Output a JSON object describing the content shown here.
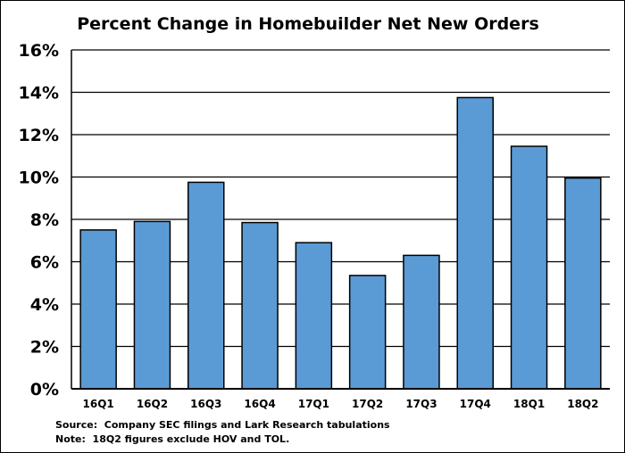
{
  "chart_data": {
    "type": "bar",
    "title": "Percent Change in Homebuilder Net New Orders",
    "xlabel": "",
    "ylabel": "",
    "categories": [
      "16Q1",
      "16Q2",
      "16Q3",
      "16Q4",
      "17Q1",
      "17Q2",
      "17Q3",
      "17Q4",
      "18Q1",
      "18Q2"
    ],
    "values": [
      7.5,
      7.9,
      9.75,
      7.85,
      6.9,
      5.35,
      6.3,
      13.75,
      11.45,
      9.95
    ],
    "ylim": [
      0,
      16
    ],
    "yticks": [
      0,
      2,
      4,
      6,
      8,
      10,
      12,
      14,
      16
    ],
    "ytick_labels": [
      "0%",
      "2%",
      "4%",
      "6%",
      "8%",
      "10%",
      "12%",
      "14%",
      "16%"
    ],
    "grid": "horizontal",
    "bar_color": "#5B9BD5",
    "legend": "none"
  },
  "notes": {
    "source": "Source:  Company SEC filings and Lark Research tabulations",
    "note": "Note:  18Q2 figures exclude HOV and TOL."
  }
}
